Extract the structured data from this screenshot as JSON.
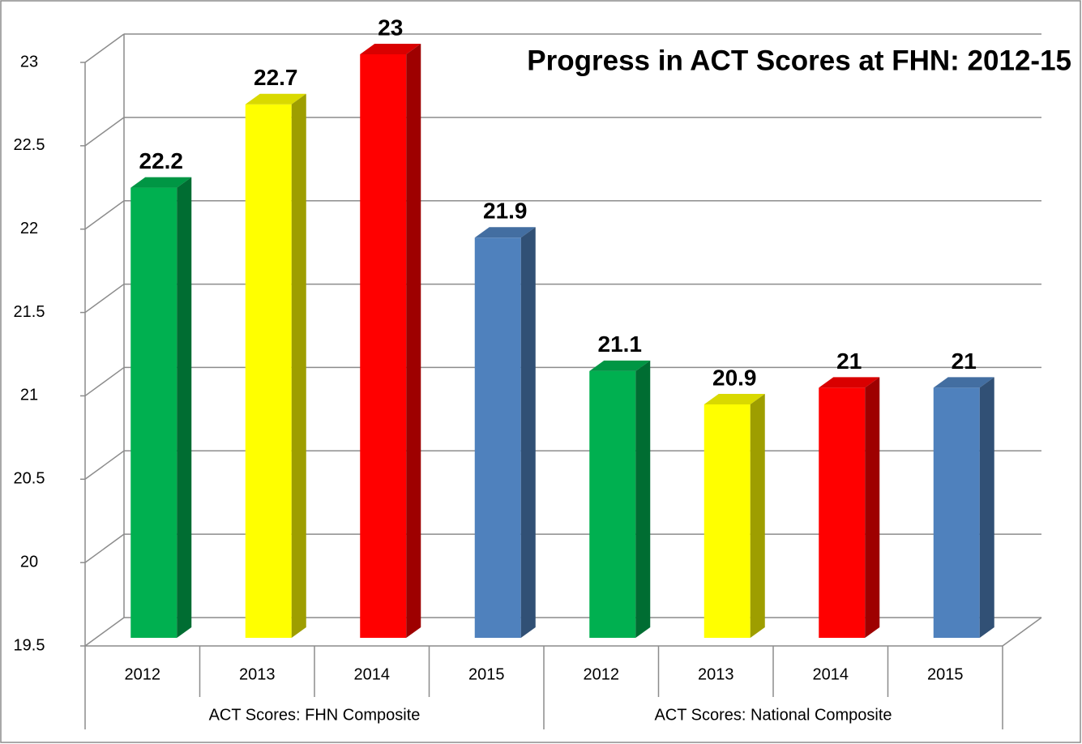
{
  "chart_data": {
    "type": "bar3d",
    "title": "Progress in ACT Scores at FHN:  2012-15",
    "groups": [
      {
        "label": "ACT Scores:  FHN Composite",
        "categories": [
          "2012",
          "2013",
          "2014",
          "2015"
        ],
        "values": [
          22.2,
          22.7,
          23,
          21.9
        ]
      },
      {
        "label": "ACT Scores: National Composite",
        "categories": [
          "2012",
          "2013",
          "2014",
          "2015"
        ],
        "values": [
          21.1,
          20.9,
          21,
          21
        ]
      }
    ],
    "colors": [
      "#00b050",
      "#ffff00",
      "#ff0000",
      "#4f81bd"
    ],
    "ylim": [
      19.5,
      23
    ],
    "yticks": [
      19.5,
      20,
      20.5,
      21,
      21.5,
      22,
      22.5,
      23
    ],
    "grid": true
  }
}
